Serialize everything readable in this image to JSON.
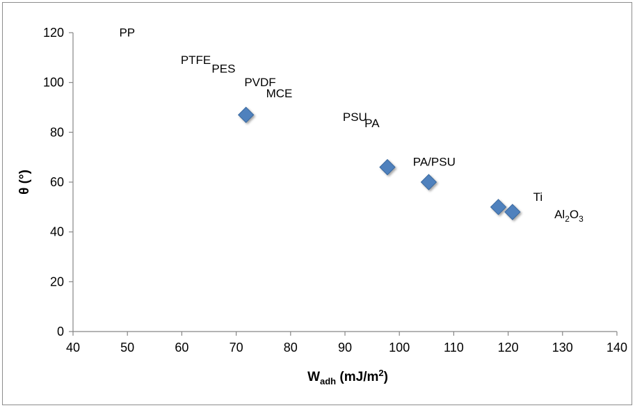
{
  "chart_data": {
    "type": "scatter",
    "xlabel": {
      "main": "W",
      "sub": "adh",
      "rest": " (mJ/m",
      "sup": "2",
      "close": ")"
    },
    "ylabel": "θ (°)",
    "xlim": [
      40,
      140
    ],
    "ylim": [
      0,
      120
    ],
    "xticks": [
      "40",
      "50",
      "60",
      "70",
      "80",
      "90",
      "100",
      "110",
      "120",
      "130",
      "140"
    ],
    "yticks": [
      "0",
      "20",
      "40",
      "60",
      "80",
      "100",
      "120"
    ],
    "grid": false,
    "legend": "none",
    "marker": {
      "shape": "diamond",
      "color": "#4f81bd"
    },
    "points": [
      {
        "x": 71.8,
        "y": 87
      },
      {
        "x": 97.8,
        "y": 66
      },
      {
        "x": 105.4,
        "y": 60
      },
      {
        "x": 118.2,
        "y": 50
      },
      {
        "x": 120.8,
        "y": 48
      }
    ],
    "annotations": [
      {
        "text": "PP",
        "x": 48.5,
        "y": 118.5
      },
      {
        "text": "PTFE",
        "x": 59.8,
        "y": 107.5
      },
      {
        "text": "PES",
        "x": 65.5,
        "y": 104
      },
      {
        "text": "PVDF",
        "x": 71.5,
        "y": 98.5
      },
      {
        "text": "MCE",
        "x": 75.5,
        "y": 94
      },
      {
        "text": "PSU",
        "x": 89.6,
        "y": 84.5
      },
      {
        "text": "PA",
        "x": 93.6,
        "y": 82
      },
      {
        "text": "PA/PSU",
        "x": 102.5,
        "y": 66.5
      },
      {
        "text": "Ti",
        "x": 124.6,
        "y": 52.5
      },
      {
        "text": "Al",
        "sub1": "2",
        "mid": "O",
        "sub2": "3",
        "x": 128.5,
        "y": 45.5
      }
    ]
  }
}
